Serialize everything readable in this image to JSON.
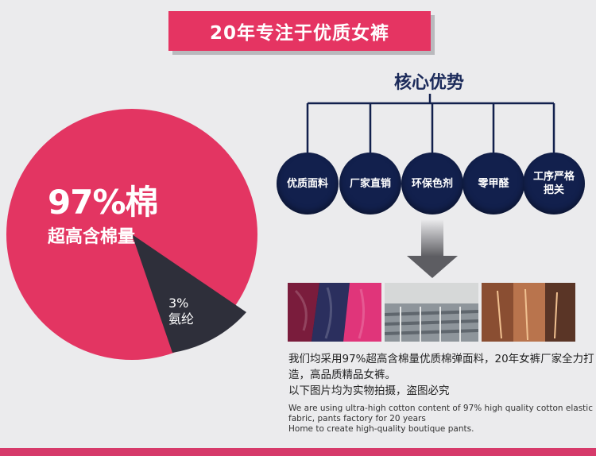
{
  "banner": {
    "title": "20年专注于优质女裤"
  },
  "core": {
    "title": "核心优势",
    "items": [
      {
        "label": "优质面料"
      },
      {
        "label": "厂家直销"
      },
      {
        "label": "环保色剂"
      },
      {
        "label": "零甲醛"
      },
      {
        "label": "工序严格\n把关"
      }
    ]
  },
  "pie": {
    "main_value": "97%棉",
    "main_label": "超高含棉量",
    "minor_value": "3%",
    "minor_label": "氨纶",
    "main_color": "#e33562",
    "minor_color": "#2e2f3a",
    "main_percent": 97,
    "minor_percent": 3
  },
  "photos": [
    {
      "name": "fabric-photo"
    },
    {
      "name": "factory-photo"
    },
    {
      "name": "machine-photo"
    }
  ],
  "description": {
    "cn_line1": "我们均采用97%超高含棉量优质棉弹面料，20年女裤厂家全力打造，高品质精品女裤。",
    "cn_line2": "以下图片均为实物拍摄，盗图必究",
    "en_line1": "We are using ultra-high cotton content of 97% high quality cotton elastic fabric, pants factory for 20 years",
    "en_line2": "Home to create high-quality boutique pants."
  },
  "colors": {
    "accent": "#e53462",
    "navy": "#12204d",
    "background": "#ebebed"
  }
}
